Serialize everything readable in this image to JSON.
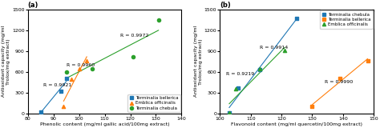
{
  "chart_data": [
    {
      "type": "scatter",
      "title": "(a)",
      "x_label": "Phenolic content (mg/ml gallic acid/100mg extract)",
      "y_label": "Antioxidant capacity (mg/ml\nTrolox/mg extract)",
      "xlim": [
        80,
        140
      ],
      "ylim": [
        0,
        1500
      ],
      "xticks": [
        80,
        90,
        100,
        110,
        120,
        130,
        140
      ],
      "yticks": [
        0,
        300,
        600,
        900,
        1200,
        1500
      ],
      "legend": "lower right",
      "series": [
        {
          "name": "Terminalia bellerica",
          "marker": "s",
          "x": [
            85,
            93,
            95
          ],
          "values": [
            20,
            320,
            500
          ],
          "fit": {
            "x": [
              85,
              95
            ],
            "y": [
              10,
              460
            ]
          }
        },
        {
          "name": "Emblica officinalis",
          "marker": "^",
          "x": [
            94,
            97,
            100,
            103
          ],
          "values": [
            100,
            490,
            640,
            760
          ],
          "fit": {
            "x": [
              94,
              103
            ],
            "y": [
              178,
              817
            ]
          }
        },
        {
          "name": "Terminalia chebula",
          "marker": "o",
          "x": [
            95,
            105,
            121,
            131
          ],
          "values": [
            600,
            640,
            820,
            1350
          ],
          "fit": {
            "x": [
              95,
              131
            ],
            "y": [
              505.953608,
              1199.046392
            ]
          }
        }
      ],
      "annotations": [
        {
          "text": "R = 0.9921",
          "x": 86,
          "y": 390
        },
        {
          "text": "R = 0.9960",
          "x": 95,
          "y": 680
        },
        {
          "text": "R = 0.9972",
          "x": 116,
          "y": 1100
        }
      ]
    },
    {
      "type": "scatter",
      "title": "(b)",
      "x_label": "Flavonoid content (mg/ml quercetin/100mg extract)",
      "y_label": "Antioxidant capacity (mg/ml\nTrolox/mg extract)",
      "xlim": [
        100,
        150
      ],
      "ylim": [
        0,
        1500
      ],
      "xticks": [
        100,
        110,
        120,
        130,
        140,
        150
      ],
      "yticks": [
        0,
        300,
        600,
        900,
        1200,
        1500
      ],
      "legend": "upper right",
      "series": [
        {
          "name": "Terminalia chebula",
          "marker": "s",
          "x": [
            103,
            106,
            113,
            125
          ],
          "values": [
            10,
            370,
            630,
            1370
          ],
          "fit": {
            "x": [
              103,
              125
            ],
            "y": [
              84.646905,
              1367.820401
            ]
          }
        },
        {
          "name": "Terminalia bellerica",
          "marker": "s",
          "x": [
            130,
            139,
            148
          ],
          "values": [
            100,
            510,
            760
          ],
          "fit": {
            "x": [
              130,
              148
            ],
            "y": [
              126.666667,
              786.666667
            ]
          }
        },
        {
          "name": "Emblica officinalis",
          "marker": "^",
          "x": [
            103,
            105,
            113,
            121
          ],
          "values": [
            10,
            350,
            640,
            910
          ],
          "fit": {
            "x": [
              103,
              121
            ],
            "y": [
              139.261084,
              951.034483
            ]
          }
        }
      ],
      "annotations": [
        {
          "text": "R = 0.9914",
          "x": 113,
          "y": 930
        },
        {
          "text": "R = 0.9990",
          "x": 134,
          "y": 430
        },
        {
          "text": "R = 0.9219",
          "x": 102,
          "y": 550
        }
      ]
    }
  ]
}
